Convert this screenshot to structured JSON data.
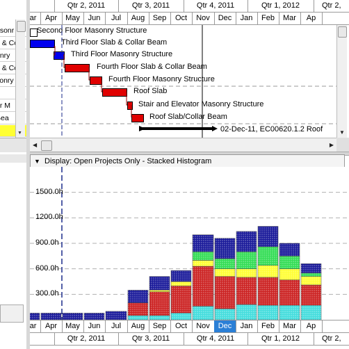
{
  "timescale": {
    "quarters": [
      "Qtr 2, 2011",
      "Qtr 3, 2011",
      "Qtr 4, 2011",
      "Qtr 1, 2012",
      "Qtr 2,"
    ],
    "months": [
      "ar",
      "Apr",
      "May",
      "Jun",
      "Jul",
      "Aug",
      "Sep",
      "Oct",
      "Nov",
      "Dec",
      "Jan",
      "Feb",
      "Mar",
      "Ap"
    ]
  },
  "bottom_timescale": {
    "months": [
      "ar",
      "Apr",
      "May",
      "Jun",
      "Jul",
      "Aug",
      "Sep",
      "Oct",
      "Nov",
      "Dec",
      "Jan",
      "Feb",
      "Mar",
      "Ap"
    ],
    "selected_month": "Dec",
    "quarters": [
      "Qtr 2, 2011",
      "Qtr 3, 2011",
      "Qtr 4, 2011",
      "Qtr 1, 2012",
      "Qtr 2,"
    ]
  },
  "left_panel": {
    "rows": [
      "asonr",
      "b & Co",
      "onry",
      "b & Co",
      "sonry",
      "",
      "or M",
      "Bea",
      ""
    ]
  },
  "gantt": {
    "tasks": [
      {
        "label": "Second Floor Masonry Structure",
        "color": "#ffffff"
      },
      {
        "label": "Third Floor Slab & Collar Beam",
        "color": "#0000ee"
      },
      {
        "label": "Third Floor Masonry Structure",
        "color": "#0000ee"
      },
      {
        "label": "Fourth Floor Slab & Collar Beam",
        "color": "#e00000"
      },
      {
        "label": "Fourth Floor Masonry Structure",
        "color": "#e00000"
      },
      {
        "label": "Roof Slab",
        "color": "#e00000"
      },
      {
        "label": "Stair and Elevator Masonry Structure",
        "color": "#e00000"
      },
      {
        "label": "Roof Slab/Collar Beam",
        "color": "#e00000"
      }
    ],
    "summary_label": "02-Dec-11, EC00620.1.2  Roof"
  },
  "display": {
    "label": "Display: Open Projects Only - Stacked Histogram",
    "arrow": "down-arrow-icon"
  },
  "histogram": {
    "colors": {
      "blue": "#1a1a9a",
      "green": "#33dd55",
      "yellow": "#ffff33",
      "red": "#cc2222",
      "cyan": "#44dddd"
    }
  },
  "chart_data": {
    "type": "bar",
    "stacked": true,
    "categories": [
      "Mar",
      "Apr",
      "May",
      "Jun",
      "Jul",
      "Aug",
      "Sep",
      "Oct",
      "Nov",
      "Dec",
      "Jan",
      "Feb",
      "Mar",
      "Apr"
    ],
    "y_ticks": [
      "300.0h",
      "600.0h",
      "900.0h",
      "1200.0h",
      "1500.0h"
    ],
    "ylim": [
      0,
      1800
    ],
    "series": [
      {
        "key": "cyan",
        "values": [
          0,
          0,
          0,
          0,
          0,
          50,
          50,
          80,
          160,
          130,
          180,
          170,
          170,
          170
        ]
      },
      {
        "key": "red",
        "values": [
          0,
          0,
          0,
          0,
          0,
          150,
          280,
          320,
          470,
          380,
          320,
          330,
          300,
          240
        ]
      },
      {
        "key": "yellow",
        "values": [
          0,
          0,
          0,
          0,
          0,
          0,
          20,
          50,
          70,
          90,
          100,
          140,
          130,
          100
        ]
      },
      {
        "key": "green",
        "values": [
          0,
          0,
          0,
          0,
          0,
          0,
          0,
          0,
          100,
          120,
          200,
          220,
          150,
          40
        ]
      },
      {
        "key": "blue",
        "values": [
          80,
          80,
          80,
          80,
          100,
          150,
          160,
          130,
          200,
          240,
          240,
          240,
          150,
          110
        ]
      }
    ]
  }
}
